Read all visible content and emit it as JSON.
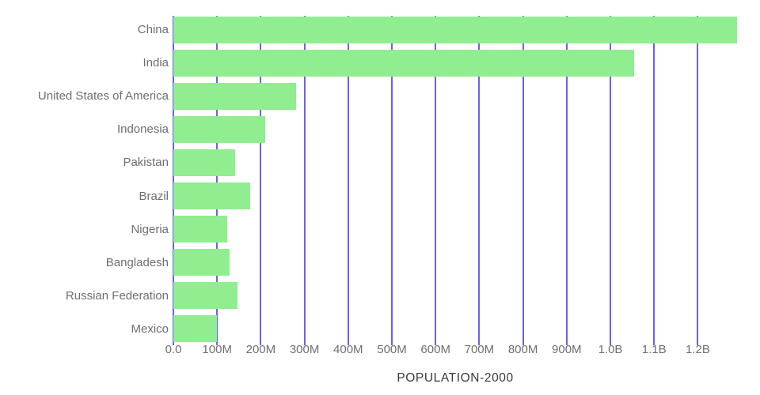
{
  "chart_data": {
    "type": "bar",
    "orientation": "horizontal",
    "title": "",
    "xlabel": "POPULATION-2000",
    "ylabel": "",
    "categories": [
      "China",
      "India",
      "United States of America",
      "Indonesia",
      "Pakistan",
      "Brazil",
      "Nigeria",
      "Bangladesh",
      "Russian Federation",
      "Mexico"
    ],
    "values_millions": [
      1290,
      1055,
      281,
      211,
      142,
      175,
      123,
      128,
      147,
      99
    ],
    "x_ticks": [
      {
        "value": 0,
        "label": "0.0"
      },
      {
        "value": 100,
        "label": "100M"
      },
      {
        "value": 200,
        "label": "200M"
      },
      {
        "value": 300,
        "label": "300M"
      },
      {
        "value": 400,
        "label": "400M"
      },
      {
        "value": 500,
        "label": "500M"
      },
      {
        "value": 600,
        "label": "600M"
      },
      {
        "value": 700,
        "label": "700M"
      },
      {
        "value": 800,
        "label": "800M"
      },
      {
        "value": 900,
        "label": "900M"
      },
      {
        "value": 1000,
        "label": "1.0B"
      },
      {
        "value": 1100,
        "label": "1.1B"
      },
      {
        "value": 1200,
        "label": "1.2B"
      }
    ],
    "xlim_millions": [
      0,
      1290
    ],
    "grid": "vertical-gridlines-on",
    "legend": "none",
    "colors": {
      "bar": "#90ee90",
      "gridline": "#6a62ef",
      "tick_label": "#6e6e6e",
      "category_label": "#6e6e6e",
      "axis_title": "#3a3a3a",
      "background": "#ffffff"
    }
  }
}
